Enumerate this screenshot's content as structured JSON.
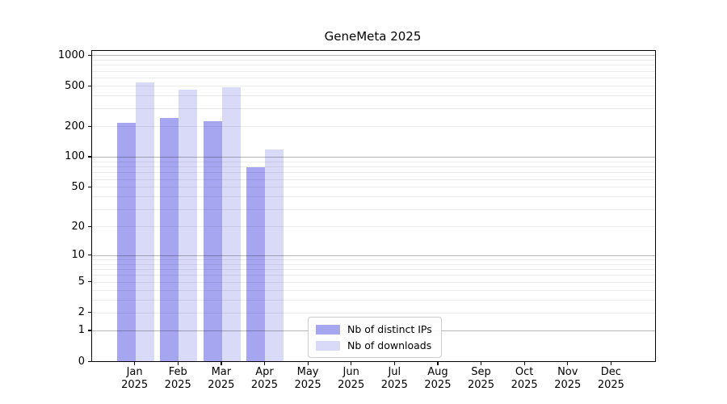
{
  "chart_data": {
    "type": "bar",
    "title": "GeneMeta 2025",
    "scale": "log1p",
    "categories": [
      "Jan",
      "Feb",
      "Mar",
      "Apr",
      "May",
      "Jun",
      "Jul",
      "Aug",
      "Sep",
      "Oct",
      "Nov",
      "Dec"
    ],
    "category_year": "2025",
    "series": [
      {
        "name": "Nb of distinct IPs",
        "color": "#a5a5f0",
        "values": [
          215,
          242,
          225,
          78,
          null,
          null,
          null,
          null,
          null,
          null,
          null,
          null
        ]
      },
      {
        "name": "Nb of downloads",
        "color": "#d9d9f8",
        "values": [
          535,
          460,
          485,
          118,
          null,
          null,
          null,
          null,
          null,
          null,
          null,
          null
        ]
      }
    ],
    "yticks": [
      0,
      1,
      2,
      5,
      10,
      20,
      50,
      100,
      200,
      500,
      1000
    ],
    "ylim": [
      0,
      1100
    ],
    "grid": "horizontal log minor+major, drawn over bars",
    "legend_position": "bottom-center-inside",
    "axis_color": "#000000",
    "background": "#ffffff"
  }
}
